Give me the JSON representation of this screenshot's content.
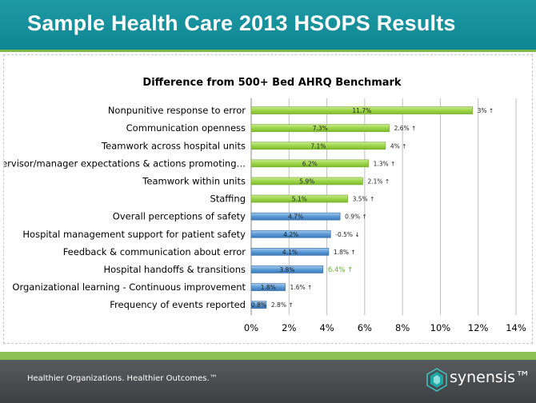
{
  "header": {
    "title": "Sample Health Care 2013 HSOPS Results"
  },
  "footer": {
    "tagline": "Healthier Organizations. Healthier Outcomes.™",
    "brand": "synensis™"
  },
  "colors": {
    "green_bar": "#9ed44a",
    "blue_bar": "#5b9bd5",
    "accent_text": "#5cb82e"
  },
  "chart_data": {
    "type": "bar",
    "orientation": "horizontal",
    "title": "Difference from 500+ Bed AHRQ Benchmark",
    "categories": [
      "Nonpunitive response to error",
      "Communication openness",
      "Teamwork across hospital units",
      "Supervisor/manager expectations & actions promoting…",
      "Teamwork within units",
      "Staffing",
      "Overall perceptions of safety",
      "Hospital management support for patient safety",
      "Feedback & communication about error",
      "Hospital handoffs & transitions",
      "Organizational learning - Continuous improvement",
      "Frequency of events reported"
    ],
    "values": [
      11.7,
      7.3,
      7.1,
      6.2,
      5.9,
      5.1,
      4.7,
      4.2,
      4.1,
      3.8,
      1.8,
      0.8
    ],
    "value_labels": [
      "11.7%",
      "7.3%",
      "7.1%",
      "6.2%",
      "5.9%",
      "5.1%",
      "4.7%",
      "4.2%",
      "4.1%",
      "3.8%",
      "1.8%",
      "0.8%"
    ],
    "change_labels": [
      "3% ↑",
      "2.6% ↑",
      "4% ↑",
      "1.3% ↑",
      "2.1% ↑",
      "3.5% ↑",
      "0.9% ↑",
      "-0.5% ↓",
      "1.8% ↑",
      "6.4% ↑",
      "1.6% ↑",
      "2.8% ↑"
    ],
    "bar_colors": [
      "green",
      "green",
      "green",
      "green",
      "green",
      "green",
      "blue",
      "blue",
      "blue",
      "blue",
      "blue",
      "blue"
    ],
    "highlight_change_index": 9,
    "xlim": [
      0,
      14
    ],
    "xticks": [
      0,
      2,
      4,
      6,
      8,
      10,
      12,
      14
    ],
    "xtick_labels": [
      "0%",
      "2%",
      "4%",
      "6%",
      "8%",
      "10%",
      "12%",
      "14%"
    ],
    "grid": true
  }
}
